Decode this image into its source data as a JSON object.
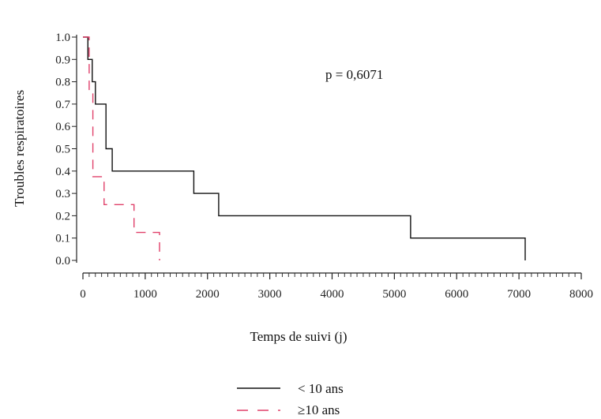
{
  "chart_data": {
    "type": "line",
    "subtype": "kaplan-meier-step",
    "title": "",
    "xlabel": "Temps de suivi (j)",
    "ylabel": "Troubles respiratoires",
    "xlim": [
      0,
      8000
    ],
    "ylim": [
      0,
      1
    ],
    "x_ticks": [
      0,
      1000,
      2000,
      3000,
      4000,
      5000,
      6000,
      7000,
      8000
    ],
    "y_ticks": [
      "0.0",
      "0.1",
      "0.2",
      "0.3",
      "0.4",
      "0.5",
      "0.6",
      "0.7",
      "0.8",
      "0.9",
      "1.0"
    ],
    "x_minor_step": 100,
    "grid": false,
    "annotation": "p = 0,6071",
    "legend_position": "bottom-center",
    "series": [
      {
        "name": "< 10 ans",
        "color": "#111111",
        "dash": "solid",
        "points": [
          [
            0,
            1.0
          ],
          [
            80,
            1.0
          ],
          [
            80,
            0.9
          ],
          [
            150,
            0.9
          ],
          [
            150,
            0.8
          ],
          [
            200,
            0.8
          ],
          [
            200,
            0.7
          ],
          [
            370,
            0.7
          ],
          [
            370,
            0.5
          ],
          [
            470,
            0.5
          ],
          [
            470,
            0.4
          ],
          [
            1780,
            0.4
          ],
          [
            1780,
            0.3
          ],
          [
            2180,
            0.3
          ],
          [
            2180,
            0.2
          ],
          [
            5260,
            0.2
          ],
          [
            5260,
            0.1
          ],
          [
            7100,
            0.1
          ],
          [
            7100,
            0.0
          ]
        ]
      },
      {
        "name": "≥10 ans",
        "color": "#e0406a",
        "dash": "dashed",
        "points": [
          [
            0,
            1.0
          ],
          [
            100,
            1.0
          ],
          [
            100,
            0.75
          ],
          [
            160,
            0.75
          ],
          [
            160,
            0.375
          ],
          [
            340,
            0.375
          ],
          [
            340,
            0.25
          ],
          [
            820,
            0.25
          ],
          [
            820,
            0.125
          ],
          [
            1230,
            0.125
          ],
          [
            1230,
            0.0
          ]
        ]
      }
    ]
  }
}
